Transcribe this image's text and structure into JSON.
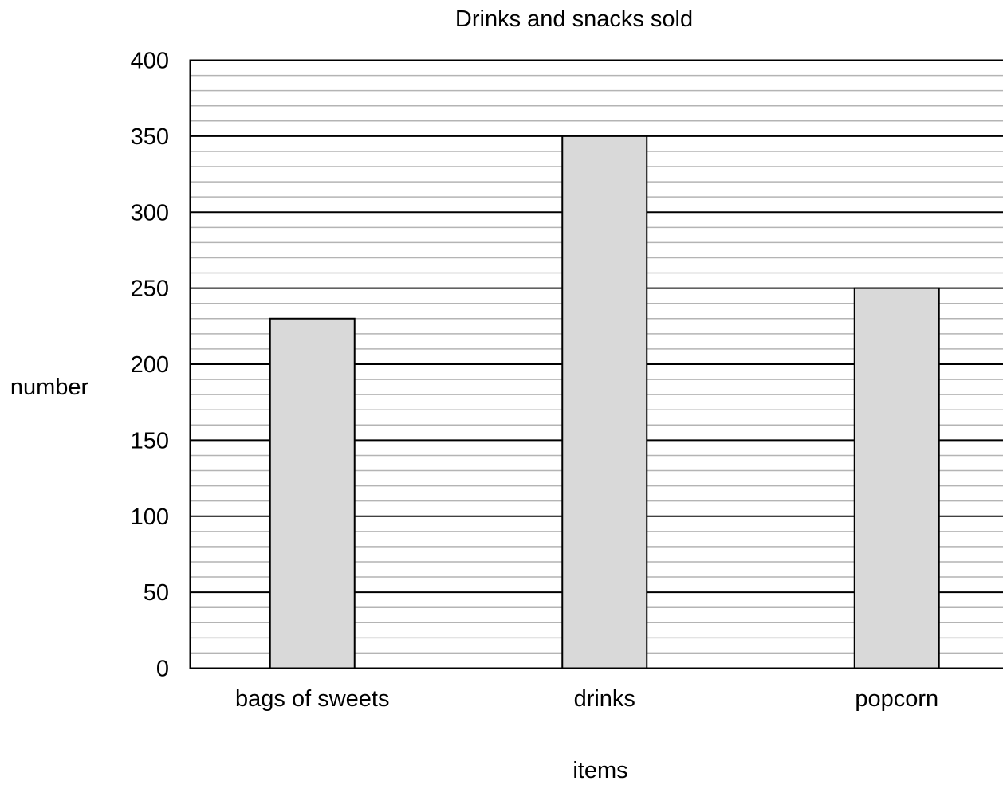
{
  "chart_data": {
    "type": "bar",
    "title": "Drinks and snacks sold",
    "xlabel": "items",
    "ylabel": "number",
    "categories": [
      "bags of sweets",
      "drinks",
      "popcorn"
    ],
    "values": [
      230,
      350,
      250
    ],
    "ylim": [
      0,
      400
    ],
    "major_ticks": [
      0,
      50,
      100,
      150,
      200,
      250,
      300,
      350,
      400
    ],
    "minor_step": 10,
    "grid": true,
    "bar_color": "#d9d9d9"
  }
}
